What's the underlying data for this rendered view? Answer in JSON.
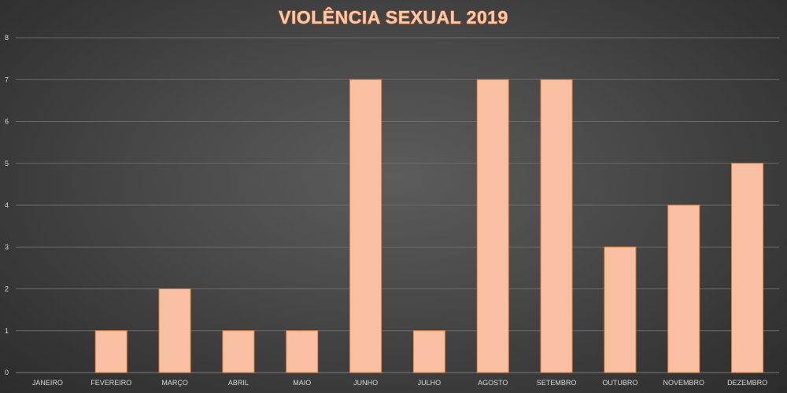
{
  "chart_data": {
    "type": "bar",
    "title": "VIOLÊNCIA SEXUAL 2019",
    "xlabel": "",
    "ylabel": "",
    "categories": [
      "JANEIRO",
      "FEVEREIRO",
      "MARÇO",
      "ABRIL",
      "MAIO",
      "JUNHO",
      "JULHO",
      "AGOSTO",
      "SETEMBRO",
      "OUTUBRO",
      "NOVEMBRO",
      "DEZEMBRO"
    ],
    "values": [
      0,
      1,
      2,
      1,
      1,
      7,
      1,
      7,
      7,
      3,
      4,
      5
    ],
    "ylim": [
      0,
      8
    ],
    "yticks": [
      "0",
      "1",
      "2",
      "3",
      "4",
      "5",
      "6",
      "7",
      "8"
    ],
    "grid": true,
    "legend": "none",
    "colors": {
      "bar_fill": "#f9bfa2",
      "bar_edge": "#e0833d",
      "title_fill": "#fbc9ad",
      "title_stroke": "#c96a2e",
      "background": "#4a4a4a"
    }
  }
}
